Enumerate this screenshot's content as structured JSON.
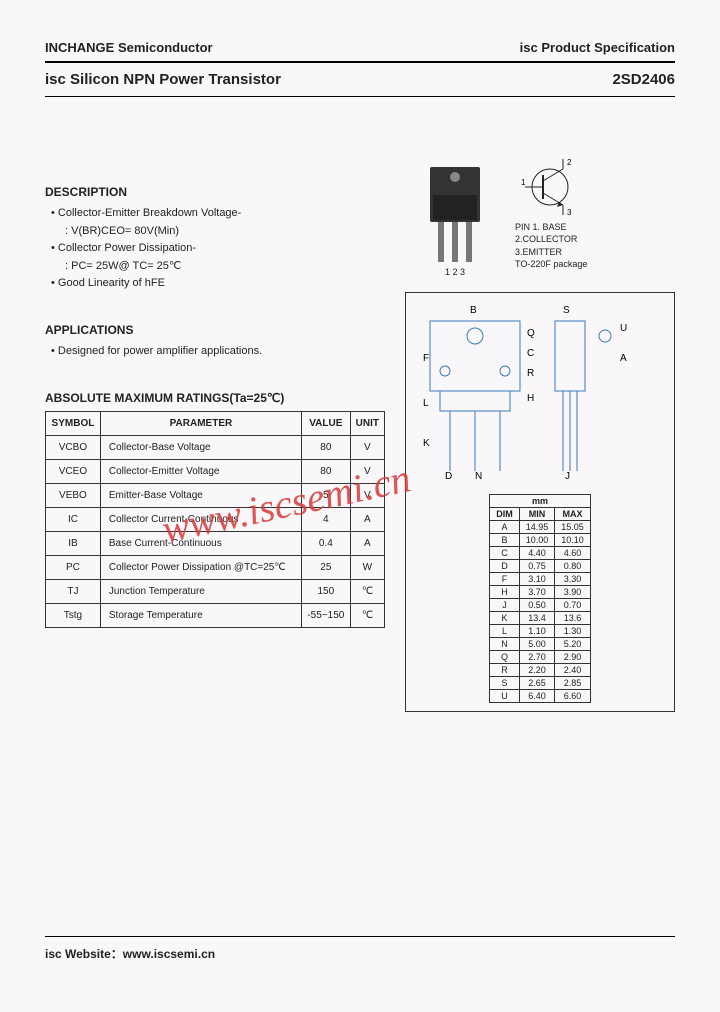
{
  "header": {
    "company": "INCHANGE Semiconductor",
    "spec": "isc Product Specification"
  },
  "title": {
    "product": "isc Silicon NPN Power Transistor",
    "part": "2SD2406"
  },
  "description": {
    "heading": "DESCRIPTION",
    "items": [
      "Collector-Emitter Breakdown Voltage-",
      "Collector Power Dissipation-",
      "Good Linearity of hFE"
    ],
    "sub1": ": V(BR)CEO= 80V(Min)",
    "sub2": ": PC= 25W@ TC= 25℃"
  },
  "applications": {
    "heading": "APPLICATIONS",
    "text": "Designed for power amplifier applications."
  },
  "ratings": {
    "heading": "ABSOLUTE MAXIMUM RATINGS(Ta=25℃)",
    "cols": [
      "SYMBOL",
      "PARAMETER",
      "VALUE",
      "UNIT"
    ],
    "rows": [
      [
        "VCBO",
        "Collector-Base Voltage",
        "80",
        "V"
      ],
      [
        "VCEO",
        "Collector-Emitter Voltage",
        "80",
        "V"
      ],
      [
        "VEBO",
        "Emitter-Base Voltage",
        "5",
        "V"
      ],
      [
        "IC",
        "Collector Current-Continuous",
        "4",
        "A"
      ],
      [
        "IB",
        "Base Current-Continuous",
        "0.4",
        "A"
      ],
      [
        "PC",
        "Collector Power Dissipation @TC=25℃",
        "25",
        "W"
      ],
      [
        "TJ",
        "Junction Temperature",
        "150",
        "℃"
      ],
      [
        "Tstg",
        "Storage Temperature",
        "-55~150",
        "℃"
      ]
    ]
  },
  "pins": {
    "label": "PIN",
    "p1": "1. BASE",
    "p2": "2.COLLECTOR",
    "p3": "3.EMITTER",
    "pkg": "TO-220F package",
    "nums": "1  2  3"
  },
  "dims": {
    "header_mm": "mm",
    "cols": [
      "DIM",
      "MIN",
      "MAX"
    ],
    "rows": [
      [
        "A",
        "14.95",
        "15.05"
      ],
      [
        "B",
        "10.00",
        "10.10"
      ],
      [
        "C",
        "4.40",
        "4.60"
      ],
      [
        "D",
        "0.75",
        "0.80"
      ],
      [
        "F",
        "3.10",
        "3.30"
      ],
      [
        "H",
        "3.70",
        "3.90"
      ],
      [
        "J",
        "0.50",
        "0.70"
      ],
      [
        "K",
        "13.4",
        "13.6"
      ],
      [
        "L",
        "1.10",
        "1.30"
      ],
      [
        "N",
        "5.00",
        "5.20"
      ],
      [
        "Q",
        "2.70",
        "2.90"
      ],
      [
        "R",
        "2.20",
        "2.40"
      ],
      [
        "S",
        "2.65",
        "2.85"
      ],
      [
        "U",
        "6.40",
        "6.60"
      ]
    ]
  },
  "watermark": "www.iscsemi.cn",
  "footer": "isc Website：www.iscsemi.cn",
  "colors": {
    "text": "#222222",
    "border": "#333333",
    "watermark": "#d93a3a",
    "bg": "#faf7fa"
  }
}
